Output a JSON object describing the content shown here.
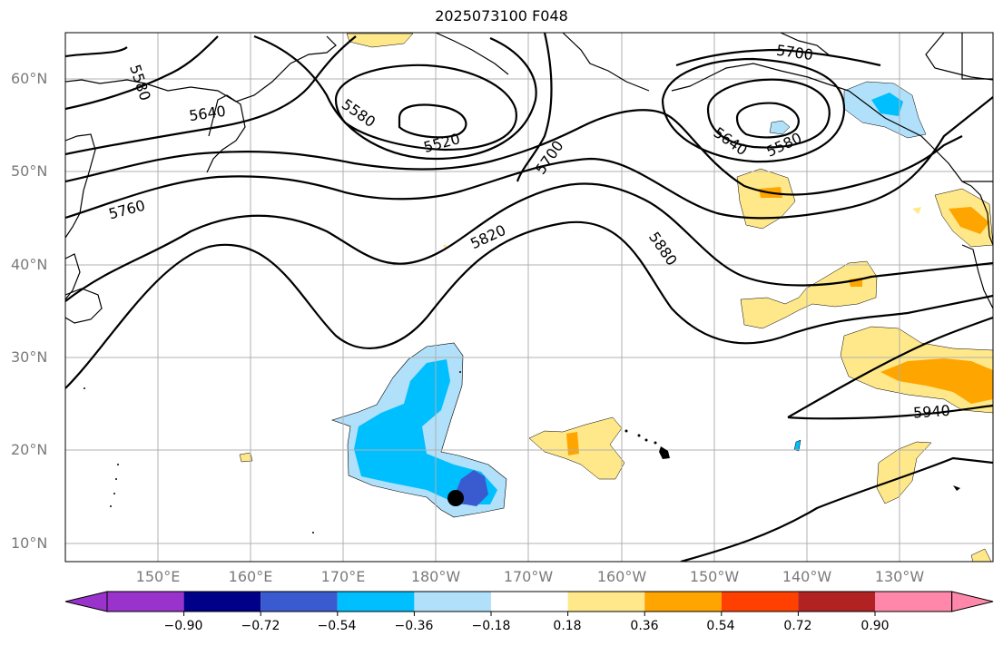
{
  "title": "2025073100 F048",
  "map": {
    "lat_labels": [
      "60°N",
      "50°N",
      "40°N",
      "30°N",
      "20°N",
      "10°N"
    ],
    "lon_labels": [
      "150°E",
      "160°E",
      "170°E",
      "180°W",
      "170°W",
      "160°W",
      "150°W",
      "140°W",
      "130°W"
    ],
    "contour_labels": [
      "5580",
      "5640",
      "5760",
      "5520",
      "5580",
      "5700",
      "5700",
      "5640",
      "5580",
      "5820",
      "5880",
      "5940"
    ],
    "colors": {
      "contour": "#000000",
      "grid": "#b0b0b0",
      "coast": "#000000"
    }
  },
  "colorbar": {
    "tick_labels": [
      "−0.90",
      "−0.72",
      "−0.54",
      "−0.36",
      "−0.18",
      "0.18",
      "0.36",
      "0.54",
      "0.72",
      "0.90"
    ],
    "colors": [
      "#9933cc",
      "#000088",
      "#3a5bcf",
      "#00bfff",
      "#b0e0fa",
      "#ffffff",
      "#ffe88a",
      "#ffa500",
      "#ff4000",
      "#b22222",
      "#ff88aa"
    ]
  }
}
